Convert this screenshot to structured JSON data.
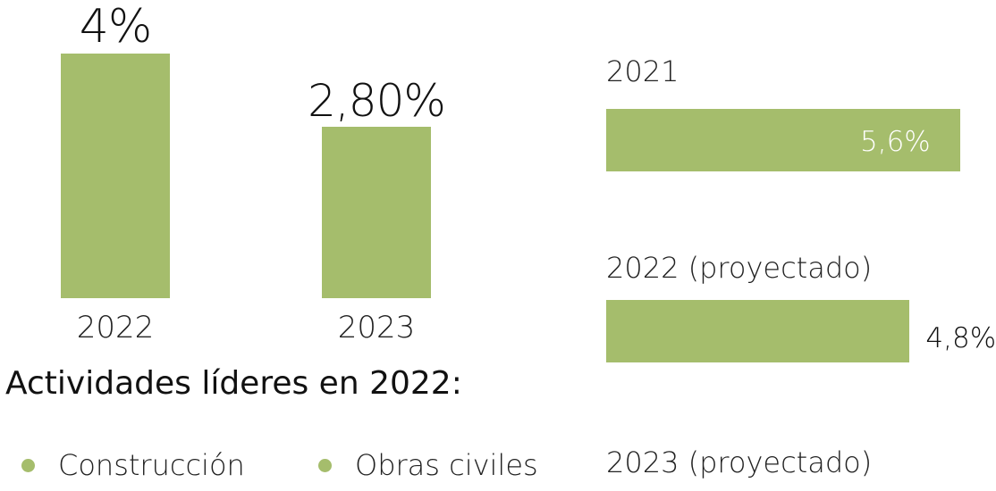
{
  "colors": {
    "bar": "#a5bd6c",
    "label_dark": "#111111",
    "label_light": "#ffffff"
  },
  "chart_data": [
    {
      "type": "bar",
      "orientation": "vertical",
      "categories": [
        "2022",
        "2023"
      ],
      "values": [
        4,
        2.8
      ],
      "value_labels": [
        "4%",
        "2,80%"
      ],
      "ylim": [
        0,
        4
      ]
    },
    {
      "type": "bar",
      "orientation": "horizontal",
      "categories": [
        "2021",
        "2022 (proyectado)",
        "2023 (proyectado)"
      ],
      "values": [
        5.6,
        4.8,
        null
      ],
      "value_labels": [
        "5,6%",
        "4,8%",
        ""
      ],
      "xlim": [
        0,
        5.6
      ]
    }
  ],
  "leaders": {
    "title": "Actividades líderes en 2022:",
    "items": [
      "Construcción",
      "Obras civiles"
    ]
  }
}
